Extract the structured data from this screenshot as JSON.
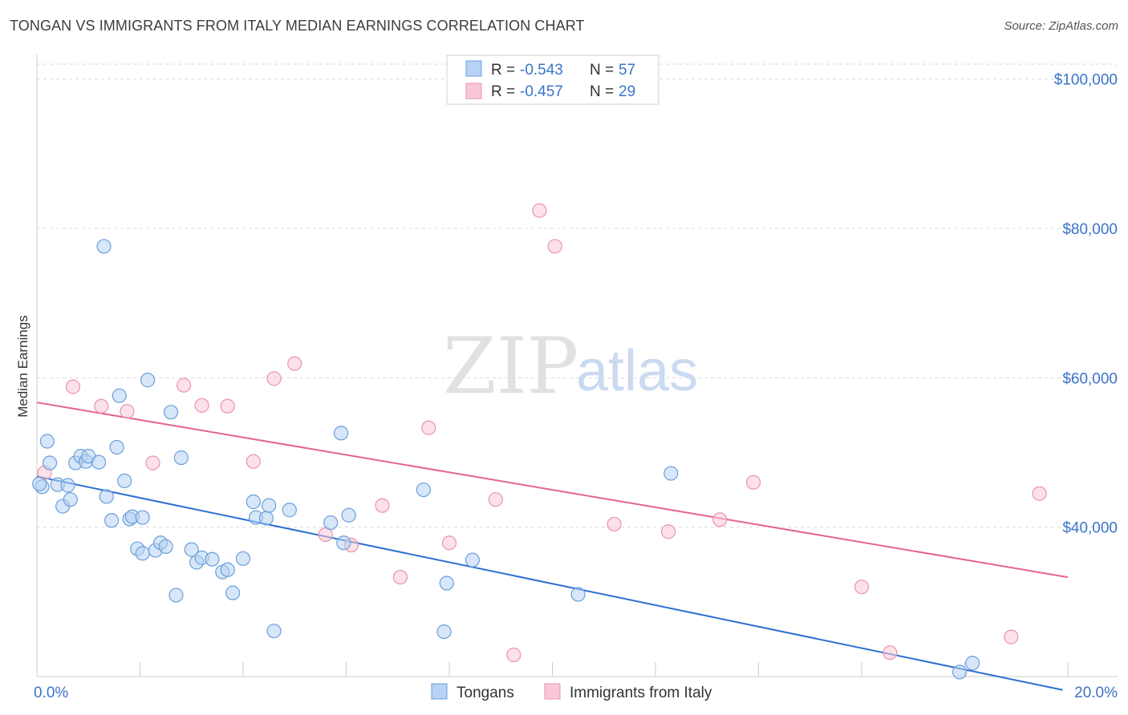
{
  "header": {
    "title": "TONGAN VS IMMIGRANTS FROM ITALY MEDIAN EARNINGS CORRELATION CHART",
    "source": "Source: ZipAtlas.com"
  },
  "watermark": {
    "zip": "ZIP",
    "atlas": "atlas"
  },
  "legend": {
    "r_label": "R =",
    "n_label": "N =",
    "entries": [
      {
        "r": "-0.543",
        "n": "57"
      },
      {
        "r": "-0.457",
        "n": "29"
      }
    ]
  },
  "colors": {
    "blue_fill": "#b7d2f3",
    "blue_stroke": "#6a9fdc",
    "blue_line": "#2b6fd1",
    "pink_fill": "#f9c8d6",
    "pink_stroke": "#e993ad",
    "pink_line": "#e4648e",
    "value_text": "#3a74c9",
    "grid": "#d9d9d9"
  },
  "chart_data": {
    "type": "scatter",
    "title": "TONGAN VS IMMIGRANTS FROM ITALY MEDIAN EARNINGS CORRELATION CHART",
    "xlabel": "",
    "ylabel": "Median Earnings",
    "xlim": [
      0,
      20
    ],
    "ylim": [
      20000,
      102000
    ],
    "x_tick_labels": [
      {
        "value": 0,
        "label": "0.0%"
      },
      {
        "value": 20,
        "label": "20.0%"
      }
    ],
    "y_tick_labels": [
      {
        "value": 40000,
        "label": "$40,000"
      },
      {
        "value": 60000,
        "label": "$60,000"
      },
      {
        "value": 80000,
        "label": "$80,000"
      },
      {
        "value": 100000,
        "label": "$100,000"
      }
    ],
    "grid": true,
    "legend_position": "top-center",
    "series": [
      {
        "name": "Tongans",
        "color": "#6a9fdc",
        "trend": {
          "x": [
            0.0,
            19.9
          ],
          "y": [
            46800,
            18200
          ]
        },
        "points": [
          [
            0.1,
            45400
          ],
          [
            0.25,
            48600
          ],
          [
            0.4,
            45700
          ],
          [
            0.5,
            42800
          ],
          [
            0.6,
            45600
          ],
          [
            0.65,
            43700
          ],
          [
            0.75,
            48600
          ],
          [
            0.85,
            49500
          ],
          [
            0.95,
            48800
          ],
          [
            1.0,
            49500
          ],
          [
            1.3,
            77600
          ],
          [
            1.35,
            44100
          ],
          [
            1.45,
            40900
          ],
          [
            1.55,
            50700
          ],
          [
            1.6,
            57600
          ],
          [
            1.7,
            46200
          ],
          [
            1.8,
            41100
          ],
          [
            1.85,
            41400
          ],
          [
            1.95,
            37100
          ],
          [
            2.05,
            36500
          ],
          [
            2.15,
            59700
          ],
          [
            2.3,
            36900
          ],
          [
            2.4,
            37900
          ],
          [
            2.5,
            37400
          ],
          [
            2.6,
            55400
          ],
          [
            2.7,
            30900
          ],
          [
            2.8,
            49300
          ],
          [
            3.0,
            37000
          ],
          [
            3.1,
            35300
          ],
          [
            3.2,
            35900
          ],
          [
            3.4,
            35700
          ],
          [
            3.6,
            34000
          ],
          [
            3.7,
            34300
          ],
          [
            3.8,
            31200
          ],
          [
            4.0,
            35800
          ],
          [
            4.2,
            43400
          ],
          [
            4.25,
            41300
          ],
          [
            4.45,
            41200
          ],
          [
            4.5,
            42900
          ],
          [
            4.6,
            26100
          ],
          [
            4.9,
            42300
          ],
          [
            5.7,
            40600
          ],
          [
            5.95,
            37900
          ],
          [
            6.05,
            41600
          ],
          [
            5.9,
            52600
          ],
          [
            7.5,
            45000
          ],
          [
            7.9,
            26000
          ],
          [
            7.95,
            32500
          ],
          [
            8.45,
            35600
          ],
          [
            10.5,
            31000
          ],
          [
            12.3,
            47200
          ],
          [
            17.9,
            20600
          ],
          [
            18.15,
            21800
          ],
          [
            0.2,
            51500
          ],
          [
            0.05,
            45800
          ],
          [
            1.2,
            48700
          ],
          [
            2.05,
            41300
          ]
        ]
      },
      {
        "name": "Immigrants from Italy",
        "color": "#e993ad",
        "trend": {
          "x": [
            0.0,
            20.0
          ],
          "y": [
            56700,
            33300
          ]
        },
        "points": [
          [
            0.15,
            47300
          ],
          [
            0.7,
            58800
          ],
          [
            1.25,
            56200
          ],
          [
            1.75,
            55500
          ],
          [
            2.25,
            48600
          ],
          [
            2.85,
            59000
          ],
          [
            3.2,
            56300
          ],
          [
            3.7,
            56200
          ],
          [
            4.2,
            48800
          ],
          [
            4.6,
            59900
          ],
          [
            5.0,
            61900
          ],
          [
            5.6,
            39000
          ],
          [
            6.1,
            37600
          ],
          [
            6.7,
            42900
          ],
          [
            7.05,
            33300
          ],
          [
            7.6,
            53300
          ],
          [
            8.0,
            37900
          ],
          [
            8.9,
            43700
          ],
          [
            9.25,
            22900
          ],
          [
            9.75,
            82400
          ],
          [
            10.05,
            77600
          ],
          [
            11.2,
            40400
          ],
          [
            12.25,
            39400
          ],
          [
            13.25,
            41000
          ],
          [
            13.9,
            46000
          ],
          [
            16.0,
            32000
          ],
          [
            16.55,
            23200
          ],
          [
            18.9,
            25300
          ],
          [
            19.45,
            44500
          ]
        ]
      }
    ]
  }
}
